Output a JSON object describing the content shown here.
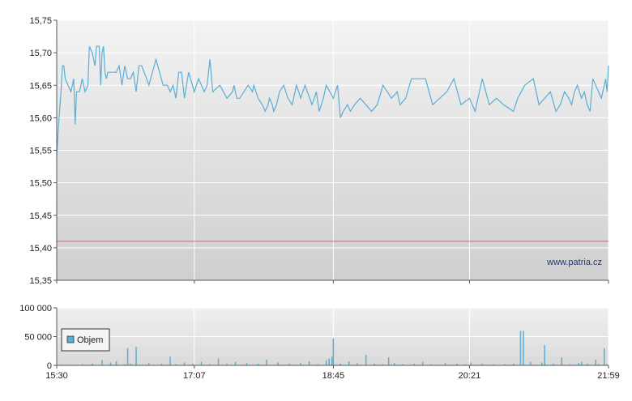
{
  "chart_data": [
    {
      "type": "line",
      "title": "",
      "xlabel": "",
      "ylabel": "",
      "ylim": [
        15.35,
        15.75
      ],
      "y_ticks": [
        "15,75",
        "15,70",
        "15,65",
        "15,60",
        "15,55",
        "15,50",
        "15,45",
        "15,40",
        "15,35"
      ],
      "y_tick_values": [
        15.75,
        15.7,
        15.65,
        15.6,
        15.55,
        15.5,
        15.45,
        15.4,
        15.35
      ],
      "x_ticks": [
        "15:30",
        "17:07",
        "18:45",
        "20:21",
        "21:59"
      ],
      "x_tick_minutes": [
        930,
        1027,
        1125,
        1221,
        1319
      ],
      "grid": true,
      "reference_line": {
        "value": 15.41,
        "color": "#e06666"
      },
      "watermark": "www.patria.cz",
      "line_color": "#5aaed6",
      "series": [
        {
          "x": [
            "15:30",
            "15:31",
            "15:32",
            "15:33",
            "15:34",
            "15:35",
            "15:36",
            "15:38",
            "15:40",
            "15:42",
            "15:43",
            "15:44",
            "15:46",
            "15:47",
            "15:48",
            "15:50",
            "15:52",
            "15:53",
            "15:55",
            "15:57",
            "15:58",
            "16:00",
            "16:01",
            "16:02",
            "16:03",
            "16:04",
            "16:05",
            "16:06",
            "16:08",
            "16:10",
            "16:12",
            "16:14",
            "16:16",
            "16:18",
            "16:20",
            "16:22",
            "16:24",
            "16:26",
            "16:28",
            "16:30",
            "16:35",
            "16:40",
            "16:45",
            "16:48",
            "16:50",
            "16:52",
            "16:54",
            "16:56",
            "16:58",
            "17:00",
            "17:03",
            "17:07",
            "17:10",
            "17:14",
            "17:16",
            "17:18",
            "17:20",
            "17:25",
            "17:30",
            "17:34",
            "17:35",
            "17:37",
            "17:39",
            "17:45",
            "17:48",
            "17:49",
            "17:52",
            "17:55",
            "17:57",
            "17:59",
            "18:00",
            "18:02",
            "18:03",
            "18:05",
            "18:07",
            "18:10",
            "18:13",
            "18:16",
            "18:19",
            "18:22",
            "18:25",
            "18:30",
            "18:33",
            "18:35",
            "18:38",
            "18:40",
            "18:45",
            "18:48",
            "18:50",
            "18:52",
            "18:55",
            "18:57",
            "19:00",
            "19:04",
            "19:08",
            "19:12",
            "19:16",
            "19:20",
            "19:26",
            "19:30",
            "19:32",
            "19:36",
            "19:40",
            "19:45",
            "19:50",
            "19:55",
            "20:00",
            "20:05",
            "20:10",
            "20:15",
            "20:21",
            "20:25",
            "20:30",
            "20:35",
            "20:40",
            "20:45",
            "20:52",
            "20:55",
            "21:00",
            "21:06",
            "21:10",
            "21:14",
            "21:18",
            "21:22",
            "21:25",
            "21:28",
            "21:31",
            "21:33",
            "21:35",
            "21:37",
            "21:40",
            "21:42",
            "21:44",
            "21:46",
            "21:48",
            "21:50",
            "21:52",
            "21:54",
            "21:55",
            "21:57",
            "21:58",
            "21:59"
          ],
          "values": [
            15.54,
            15.58,
            15.61,
            15.64,
            15.68,
            15.68,
            15.66,
            15.65,
            15.64,
            15.66,
            15.59,
            15.64,
            15.64,
            15.65,
            15.66,
            15.64,
            15.65,
            15.71,
            15.7,
            15.68,
            15.71,
            15.71,
            15.65,
            15.7,
            15.71,
            15.67,
            15.66,
            15.67,
            15.67,
            15.67,
            15.67,
            15.68,
            15.65,
            15.68,
            15.66,
            15.66,
            15.67,
            15.64,
            15.68,
            15.68,
            15.65,
            15.69,
            15.65,
            15.65,
            15.64,
            15.65,
            15.63,
            15.67,
            15.67,
            15.63,
            15.67,
            15.64,
            15.66,
            15.64,
            15.65,
            15.69,
            15.64,
            15.65,
            15.63,
            15.64,
            15.65,
            15.63,
            15.63,
            15.65,
            15.64,
            15.65,
            15.63,
            15.62,
            15.61,
            15.62,
            15.63,
            15.62,
            15.61,
            15.62,
            15.64,
            15.65,
            15.63,
            15.62,
            15.65,
            15.63,
            15.65,
            15.62,
            15.64,
            15.61,
            15.63,
            15.65,
            15.63,
            15.65,
            15.6,
            15.61,
            15.62,
            15.61,
            15.62,
            15.63,
            15.62,
            15.61,
            15.62,
            15.65,
            15.63,
            15.64,
            15.62,
            15.63,
            15.66,
            15.66,
            15.66,
            15.62,
            15.63,
            15.64,
            15.66,
            15.62,
            15.63,
            15.61,
            15.66,
            15.62,
            15.63,
            15.62,
            15.61,
            15.63,
            15.65,
            15.66,
            15.62,
            15.63,
            15.64,
            15.61,
            15.62,
            15.64,
            15.63,
            15.62,
            15.64,
            15.65,
            15.63,
            15.64,
            15.62,
            15.61,
            15.66,
            15.65,
            15.64,
            15.63,
            15.64,
            15.66,
            15.64,
            15.68
          ]
        }
      ]
    },
    {
      "type": "bar",
      "title": "",
      "xlabel": "",
      "ylabel": "",
      "ylim": [
        0,
        100000
      ],
      "y_ticks": [
        "100 000",
        "50 000",
        "0"
      ],
      "y_tick_values": [
        100000,
        50000,
        0
      ],
      "x_ticks": [
        "15:30",
        "17:07",
        "18:45",
        "20:21",
        "21:59"
      ],
      "x_tick_minutes": [
        930,
        1027,
        1125,
        1221,
        1319
      ],
      "grid": true,
      "bar_color": "#5aaed6",
      "legend": {
        "label": "Objem",
        "placement": "bottom-left"
      },
      "series": [
        {
          "name": "Objem",
          "x": [
            "15:34",
            "15:38",
            "15:48",
            "15:55",
            "16:02",
            "16:08",
            "16:12",
            "16:18",
            "16:20",
            "16:22",
            "16:26",
            "16:35",
            "16:44",
            "16:50",
            "16:54",
            "17:00",
            "17:06",
            "17:12",
            "17:18",
            "17:24",
            "17:30",
            "17:36",
            "17:44",
            "17:52",
            "17:58",
            "18:06",
            "18:14",
            "18:22",
            "18:28",
            "18:34",
            "18:40",
            "18:42",
            "18:44",
            "18:45",
            "18:50",
            "18:56",
            "19:02",
            "19:08",
            "19:14",
            "19:20",
            "19:24",
            "19:28",
            "19:34",
            "19:42",
            "19:48",
            "19:54",
            "20:04",
            "20:12",
            "20:18",
            "20:22",
            "20:30",
            "20:38",
            "20:46",
            "20:52",
            "20:57",
            "20:59",
            "21:04",
            "21:12",
            "21:14",
            "21:20",
            "21:26",
            "21:32",
            "21:38",
            "21:40",
            "21:44",
            "21:50",
            "21:52",
            "21:56",
            "21:58"
          ],
          "values": [
            1500,
            1000,
            2000,
            3000,
            9000,
            5000,
            7000,
            2000,
            30000,
            3000,
            32000,
            4000,
            3000,
            15000,
            2000,
            5000,
            3000,
            6000,
            2000,
            12000,
            3000,
            6000,
            4000,
            3000,
            10000,
            5000,
            3000,
            4000,
            7000,
            2000,
            9000,
            12000,
            15000,
            47000,
            3000,
            7000,
            4000,
            18000,
            3000,
            2000,
            14000,
            4000,
            2000,
            3000,
            6000,
            2000,
            4000,
            3000,
            2000,
            5000,
            3000,
            1500,
            2000,
            3000,
            60000,
            60000,
            6000,
            5000,
            35000,
            3000,
            14000,
            2000,
            4000,
            6000,
            3000,
            10000,
            2000,
            30000,
            2000
          ]
        }
      ]
    }
  ]
}
